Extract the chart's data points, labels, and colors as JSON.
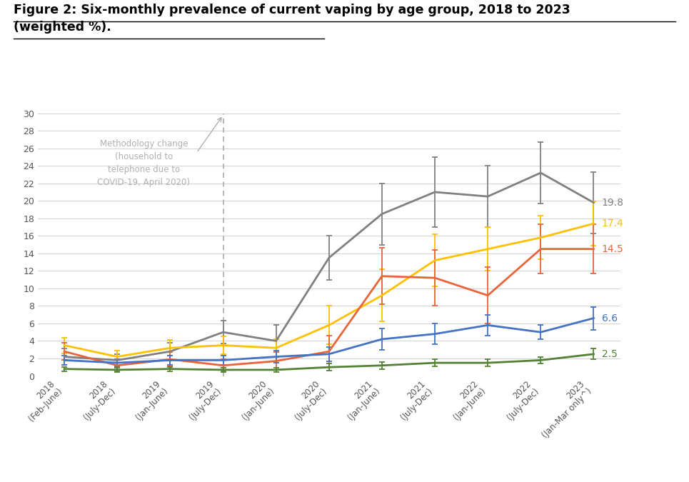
{
  "title_line1": "Figure 2: Six-monthly prevalence of current vaping by age group, 2018 to 2023",
  "title_line2": "(weighted %).",
  "x_labels": [
    "2018\n(Feb-June)",
    "2018\n(July-Dec)",
    "2019\n(Jan-June)",
    "2019\n(July-Dec)",
    "2020\n(Jan-June)",
    "2020\n(July-Dec)",
    "2021\n(Jan-June)",
    "2021\n(July-Dec)",
    "2022\n(Jan-June)",
    "2022\n(July-Dec)",
    "2023\n(Jan-Mar only^)"
  ],
  "series": {
    "14-17": {
      "color": "#E8643A",
      "values": [
        2.8,
        1.2,
        1.9,
        1.2,
        1.7,
        2.8,
        11.4,
        11.2,
        9.2,
        14.5,
        14.5
      ],
      "errors": [
        1.0,
        0.7,
        0.8,
        0.7,
        1.0,
        1.8,
        3.2,
        3.2,
        3.2,
        2.8,
        2.8
      ]
    },
    "18-24": {
      "color": "#808080",
      "values": [
        2.2,
        1.8,
        2.8,
        5.0,
        4.0,
        13.5,
        18.5,
        21.0,
        20.5,
        23.2,
        19.8
      ],
      "errors": [
        0.9,
        0.7,
        1.0,
        1.3,
        1.8,
        2.5,
        3.5,
        4.0,
        3.5,
        3.5,
        3.5
      ]
    },
    "25-34": {
      "color": "#FFC000",
      "values": [
        3.5,
        2.2,
        3.2,
        3.5,
        3.2,
        5.8,
        9.2,
        13.2,
        14.5,
        15.8,
        17.4
      ],
      "errors": [
        0.9,
        0.7,
        0.9,
        1.0,
        1.0,
        2.2,
        3.0,
        3.0,
        2.5,
        2.5,
        2.5
      ]
    },
    "35-49": {
      "color": "#4472C4",
      "values": [
        1.8,
        1.5,
        1.8,
        1.8,
        2.2,
        2.5,
        4.2,
        4.8,
        5.8,
        5.0,
        6.6
      ],
      "errors": [
        0.5,
        0.4,
        0.5,
        0.5,
        0.7,
        0.8,
        1.2,
        1.2,
        1.2,
        0.8,
        1.3
      ]
    },
    "50+": {
      "color": "#548235",
      "values": [
        0.8,
        0.7,
        0.8,
        0.7,
        0.7,
        1.0,
        1.2,
        1.5,
        1.5,
        1.8,
        2.5
      ],
      "errors": [
        0.25,
        0.25,
        0.25,
        0.25,
        0.25,
        0.4,
        0.4,
        0.4,
        0.4,
        0.4,
        0.6
      ]
    }
  },
  "end_labels": {
    "18-24": "19.8",
    "25-34": "17.4",
    "14-17": "14.5",
    "35-49": "6.6",
    "50+": "2.5"
  },
  "vline_x": 3,
  "annotation_text": "Methodology change\n(household to\ntelephone due to\nCOVID-19, April 2020)",
  "ylim": [
    0,
    30
  ],
  "yticks": [
    0,
    2,
    4,
    6,
    8,
    10,
    12,
    14,
    16,
    18,
    20,
    22,
    24,
    26,
    28,
    30
  ],
  "background_color": "#ffffff",
  "grid_color": "#d4d4d4",
  "annotation_color": "#b0b0b0",
  "vline_color": "#b0b0b0",
  "title_fontsize": 12.5
}
